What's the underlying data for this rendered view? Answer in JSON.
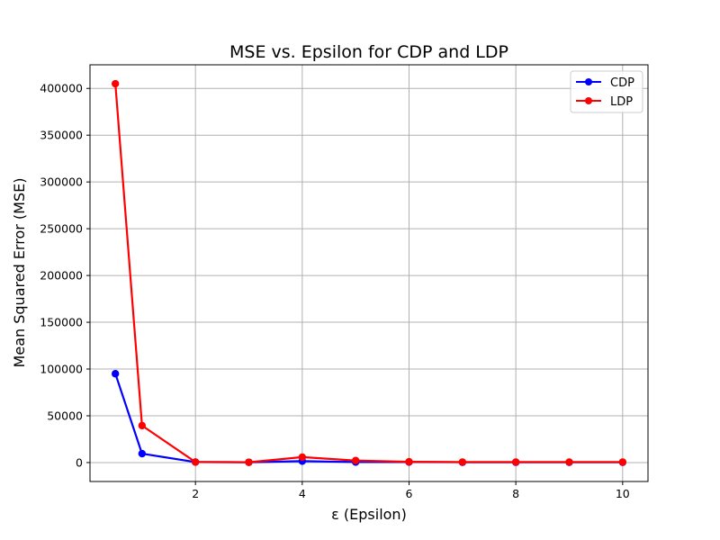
{
  "chart_data": {
    "type": "line",
    "title": "MSE vs. Epsilon for CDP and LDP",
    "xlabel": "ε (Epsilon)",
    "ylabel": "Mean Squared Error (MSE)",
    "x": [
      0.5,
      1,
      2,
      3,
      4,
      5,
      6,
      7,
      8,
      9,
      10
    ],
    "xlim": [
      0.025,
      10.475
    ],
    "ylim": [
      -20250,
      425250
    ],
    "xticks": [
      2,
      4,
      6,
      8,
      10
    ],
    "xtick_labels": [
      "2",
      "4",
      "6",
      "8",
      "10"
    ],
    "yticks": [
      0,
      50000,
      100000,
      150000,
      200000,
      250000,
      300000,
      350000,
      400000
    ],
    "ytick_labels": [
      "0",
      "50000",
      "100000",
      "150000",
      "200000",
      "250000",
      "300000",
      "350000",
      "400000"
    ],
    "grid": true,
    "legend_position": "top-right",
    "series": [
      {
        "name": "CDP",
        "color": "#0000ff",
        "marker": "circle",
        "values": [
          95000,
          9500,
          500,
          300,
          1500,
          500,
          500,
          300,
          300,
          300,
          300
        ]
      },
      {
        "name": "LDP",
        "color": "#ff0000",
        "marker": "circle",
        "values": [
          405000,
          39500,
          500,
          300,
          5800,
          2200,
          800,
          500,
          500,
          500,
          500
        ]
      }
    ]
  }
}
